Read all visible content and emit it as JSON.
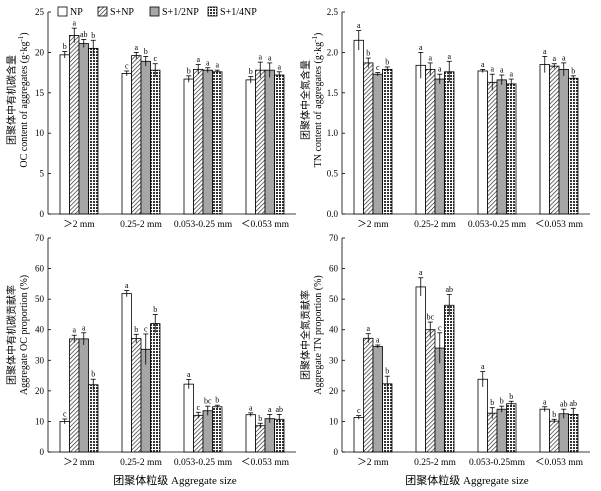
{
  "legend": {
    "entries": [
      "NP",
      "S+NP",
      "S+1/2NP",
      "S+1/4NP"
    ],
    "fills": [
      "#ffffff",
      "hatch",
      "#a6a6a6",
      "cross"
    ]
  },
  "xlabel": "团聚体粒级 Aggregate size",
  "chart_data": [
    {
      "type": "bar",
      "categories": [
        "＞2 mm",
        "0.25-2 mm",
        "0.053-0.25 mm",
        "＜0.053 mm"
      ],
      "ylabel_cn": "团聚体中有机碳含量",
      "ylabel_en1": "OC content of aggregates (g·kg",
      "ylabel_sup": "-1",
      "ylabel_en2": ")",
      "ylim": [
        0,
        25
      ],
      "yticks": [
        "0",
        "5",
        "10",
        "15",
        "20",
        "25"
      ],
      "series": [
        {
          "name": "NP",
          "values": [
            19.7,
            17.4,
            16.7,
            16.6
          ],
          "errors": [
            0.4,
            0.3,
            0.4,
            0.4
          ],
          "letters": [
            "b",
            "c",
            "b",
            "b"
          ]
        },
        {
          "name": "S+NP",
          "values": [
            22.1,
            19.6,
            17.9,
            17.8
          ],
          "errors": [
            0.9,
            0.4,
            0.6,
            1.0
          ],
          "letters": [
            "a",
            "a",
            "a",
            "a"
          ]
        },
        {
          "name": "S+1/2NP",
          "values": [
            21.1,
            18.9,
            17.8,
            17.8
          ],
          "errors": [
            0.5,
            0.6,
            0.3,
            0.9
          ],
          "letters": [
            "ab",
            "b",
            "a",
            "a"
          ]
        },
        {
          "name": "S+1/4NP",
          "values": [
            20.5,
            17.8,
            17.6,
            17.2
          ],
          "errors": [
            1.0,
            0.8,
            0.2,
            0.4
          ],
          "letters": [
            "b",
            "c",
            "a",
            "a"
          ]
        }
      ]
    },
    {
      "type": "bar",
      "categories": [
        "＞2 mm",
        "0.25-2 mm",
        "0.053-0.25 mm",
        "＜0.053 mm"
      ],
      "ylabel_cn": "团聚体中全氮含量",
      "ylabel_en1": "TN content of aggregates (g·kg",
      "ylabel_sup": "-1",
      "ylabel_en2": ")",
      "ylim": [
        0,
        2.5
      ],
      "yticks": [
        "0.0",
        "0.5",
        "1.0",
        "1.5",
        "2.0",
        "2.5"
      ],
      "series": [
        {
          "name": "NP",
          "values": [
            2.15,
            1.84,
            1.77,
            1.85
          ],
          "errors": [
            0.12,
            0.16,
            0.02,
            0.1
          ],
          "letters": [
            "a",
            "a",
            "a",
            "a"
          ]
        },
        {
          "name": "S+NP",
          "values": [
            1.87,
            1.79,
            1.63,
            1.83
          ],
          "errors": [
            0.06,
            0.08,
            0.1,
            0.03
          ],
          "letters": [
            "b",
            "a",
            "a",
            "a"
          ]
        },
        {
          "name": "S+1/2NP",
          "values": [
            1.73,
            1.67,
            1.66,
            1.79
          ],
          "errors": [
            0.02,
            0.06,
            0.06,
            0.08
          ],
          "letters": [
            "c",
            "a",
            "a",
            "a"
          ]
        },
        {
          "name": "S+1/4NP",
          "values": [
            1.79,
            1.76,
            1.61,
            1.68
          ],
          "errors": [
            0.03,
            0.13,
            0.06,
            0.03
          ],
          "letters": [
            "b",
            "a",
            "a",
            "b"
          ]
        }
      ]
    },
    {
      "type": "bar",
      "categories": [
        "＞2 mm",
        "0.25-2 mm",
        "0.053-0.25 mm",
        "＜0.053 mm"
      ],
      "ylabel_cn": "团聚体中有机碳贡献率",
      "ylabel_en1": "Aggregate OC proportion (%)",
      "ylabel_sup": "",
      "ylabel_en2": "",
      "ylim": [
        0,
        70
      ],
      "yticks": [
        "0",
        "10",
        "20",
        "30",
        "40",
        "50",
        "60",
        "70"
      ],
      "series": [
        {
          "name": "NP",
          "values": [
            10.0,
            51.8,
            22.2,
            12.2
          ],
          "errors": [
            0.8,
            1.0,
            1.5,
            0.6
          ],
          "letters": [
            "c",
            "a",
            "a",
            "a"
          ]
        },
        {
          "name": "S+NP",
          "values": [
            37.0,
            37.1,
            12.0,
            8.6
          ],
          "errors": [
            1.2,
            1.4,
            1.0,
            0.8
          ],
          "letters": [
            "a",
            "b",
            "c",
            "b"
          ]
        },
        {
          "name": "S+1/2NP",
          "values": [
            37.0,
            33.6,
            13.5,
            10.9
          ],
          "errors": [
            2.0,
            5.0,
            1.5,
            1.4
          ],
          "letters": [
            "a",
            "c",
            "bc",
            "a"
          ]
        },
        {
          "name": "S+1/4NP",
          "values": [
            22.0,
            42.0,
            14.8,
            10.7
          ],
          "errors": [
            1.8,
            3.0,
            0.5,
            1.6
          ],
          "letters": [
            "b",
            "b",
            "b",
            "ab"
          ]
        }
      ]
    },
    {
      "type": "bar",
      "categories": [
        "＞2 mm",
        "0.25-2 mm",
        "0.053-0.25mm",
        "＜0.053 mm"
      ],
      "ylabel_cn": "团聚体中全氮贡献率",
      "ylabel_en1": "Aggregate TN proportion (%)",
      "ylabel_sup": "",
      "ylabel_en2": "",
      "ylim": [
        0,
        70
      ],
      "yticks": [
        "0",
        "10",
        "20",
        "30",
        "40",
        "50",
        "60",
        "70"
      ],
      "series": [
        {
          "name": "NP",
          "values": [
            11.3,
            54.0,
            23.8,
            14.0
          ],
          "errors": [
            0.6,
            3.0,
            2.5,
            0.8
          ],
          "letters": [
            "c",
            "a",
            "a",
            "a"
          ]
        },
        {
          "name": "S+NP",
          "values": [
            37.2,
            40.0,
            12.7,
            10.1
          ],
          "errors": [
            1.5,
            2.5,
            1.8,
            0.6
          ],
          "letters": [
            "a",
            "bc",
            "b",
            "b"
          ]
        },
        {
          "name": "S+1/2NP",
          "values": [
            34.5,
            34.0,
            14.0,
            12.5
          ],
          "errors": [
            0.5,
            5.0,
            1.0,
            1.5
          ],
          "letters": [
            "a",
            "c",
            "b",
            "ab"
          ]
        },
        {
          "name": "S+1/4NP",
          "values": [
            22.3,
            48.0,
            15.8,
            12.3
          ],
          "errors": [
            2.5,
            3.5,
            0.8,
            2.0
          ],
          "letters": [
            "b",
            "ab",
            "b",
            "ab"
          ]
        }
      ]
    }
  ]
}
